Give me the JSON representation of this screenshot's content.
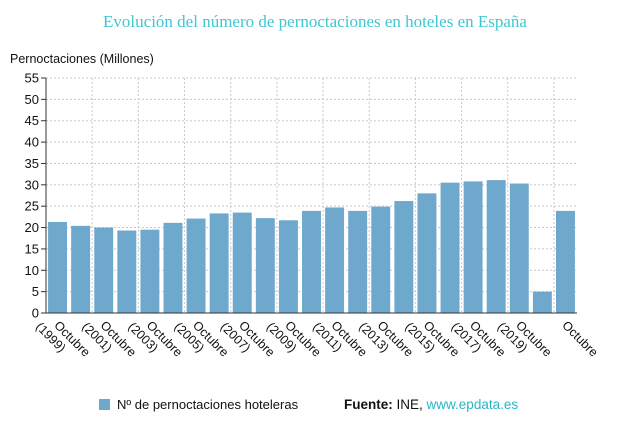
{
  "colors": {
    "title": "#3ec7d2",
    "bar": "#6ea8cc",
    "grid": "#c8c8c8",
    "axis": "#333333",
    "link": "#2ab4c8"
  },
  "footer": {
    "source_label": "Fuente:",
    "source_text": "INE,",
    "source_link": "www.epdata.es"
  },
  "chart_data": {
    "type": "bar",
    "title": "Evolución del número de pernoctaciones en hoteles en España",
    "ylabel": "Pernoctaciones (Millones)",
    "ylim": [
      0,
      55
    ],
    "yticks": [
      0,
      5,
      10,
      15,
      20,
      25,
      30,
      35,
      40,
      45,
      50,
      55
    ],
    "grid": true,
    "legend_position": "bottom",
    "series": [
      {
        "name": "Nº de pernoctaciones hoteleras",
        "values": [
          21.3,
          20.4,
          20.0,
          19.3,
          19.5,
          21.1,
          22.1,
          23.3,
          23.5,
          22.2,
          21.7,
          23.9,
          24.7,
          23.9,
          24.9,
          26.2,
          28.0,
          30.5,
          30.8,
          31.1,
          30.3,
          5.0,
          23.9
        ]
      }
    ],
    "x_tick_labels": [
      {
        "line1": "Octubre",
        "line2": "(1999)"
      },
      {
        "line1": "Octubre",
        "line2": "(2001)"
      },
      {
        "line1": "Octubre",
        "line2": "(2003)"
      },
      {
        "line1": "Octubre",
        "line2": "(2005)"
      },
      {
        "line1": "Octubre",
        "line2": "(2007)"
      },
      {
        "line1": "Octubre",
        "line2": "(2009)"
      },
      {
        "line1": "Octubre",
        "line2": "(2011)"
      },
      {
        "line1": "Octubre",
        "line2": "(2013)"
      },
      {
        "line1": "Octubre",
        "line2": "(2015)"
      },
      {
        "line1": "Octubre",
        "line2": "(2017)"
      },
      {
        "line1": "Octubre",
        "line2": "(2019)"
      },
      {
        "line1": "Octubre",
        "line2": ""
      }
    ]
  }
}
